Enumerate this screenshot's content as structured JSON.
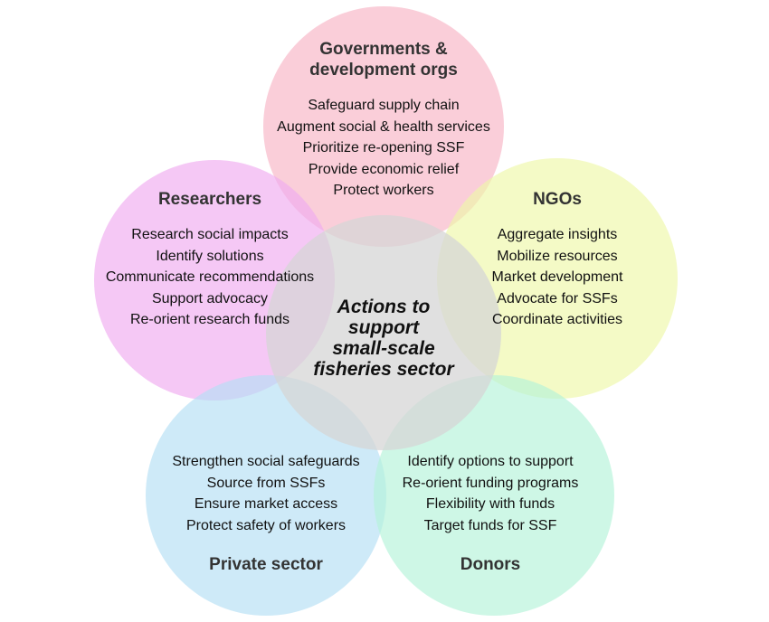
{
  "diagram": {
    "type": "overlapping-circles",
    "center": {
      "label_lines": [
        "Actions to",
        "support",
        "small-scale",
        "fisheries sector"
      ]
    },
    "groups": [
      {
        "key": "governments",
        "title_lines": [
          "Governments &",
          "development orgs"
        ],
        "items": [
          "Safeguard supply chain",
          "Augment social & health services",
          "Prioritize re-opening SSF",
          "Provide economic relief",
          "Protect workers"
        ],
        "color": "#f7b4c4"
      },
      {
        "key": "researchers",
        "title_lines": [
          "Researchers"
        ],
        "items": [
          "Research social impacts",
          "Identify solutions",
          "Communicate recommendations",
          "Support advocacy",
          "Re-orient research funds"
        ],
        "color": "#efaaf0"
      },
      {
        "key": "ngos",
        "title_lines": [
          "NGOs"
        ],
        "items": [
          "Aggregate insights",
          "Mobilize resources",
          "Market development",
          "Advocate for SSFs",
          "Coordinate activities"
        ],
        "color": "#eef7a8"
      },
      {
        "key": "private",
        "title_lines": [
          "Private sector"
        ],
        "items": [
          "Strengthen social safeguards",
          "Source from SSFs",
          "Ensure market access",
          "Protect safety of workers"
        ],
        "color": "#b4def4"
      },
      {
        "key": "donors",
        "title_lines": [
          "Donors"
        ],
        "items": [
          "Identify options to support",
          "Re-orient funding programs",
          "Flexibility with funds",
          "Target funds for SSF"
        ],
        "color": "#b4f2d8"
      }
    ],
    "center_color": "#d6d6d6"
  }
}
